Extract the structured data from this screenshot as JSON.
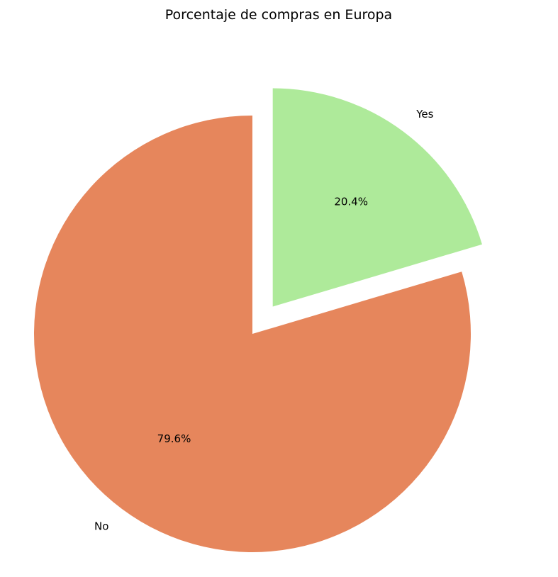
{
  "chart_data": {
    "type": "pie",
    "title": "Porcentaje de compras en Europa",
    "slices": [
      {
        "label": "Yes",
        "value": 20.4,
        "pct_label": "20.4%",
        "color": "#aeea9a",
        "exploded": true
      },
      {
        "label": "No",
        "value": 79.6,
        "pct_label": "79.6%",
        "color": "#e6865c",
        "exploded": false
      }
    ],
    "start_angle_deg": 90,
    "direction": "clockwise",
    "legend": "none"
  }
}
